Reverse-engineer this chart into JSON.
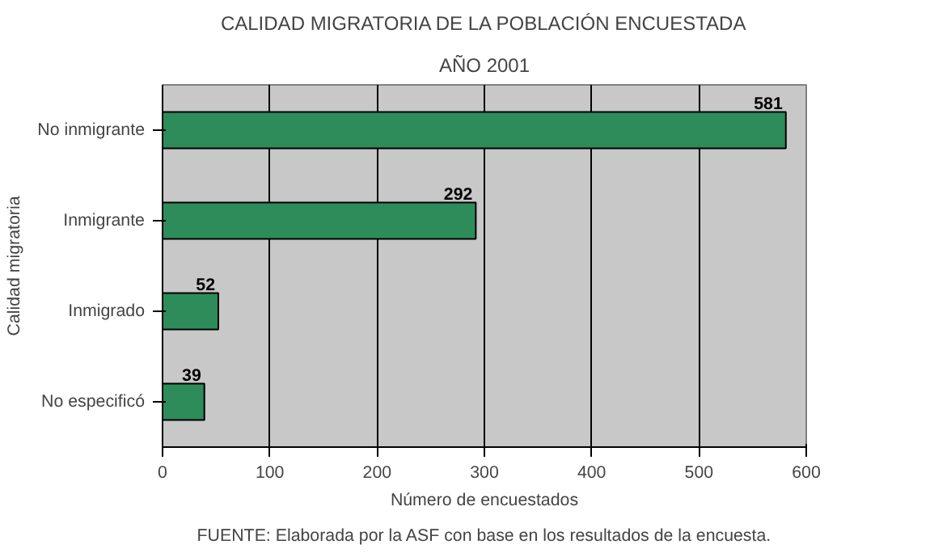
{
  "chart_data": {
    "type": "bar",
    "orientation": "horizontal",
    "title": "CALIDAD MIGRATORIA DE LA POBLACIÓN ENCUESTADA",
    "subtitle": "AÑO 2001",
    "xlabel": "Número de encuestados",
    "ylabel": "Calidad migratoria",
    "categories": [
      "No inmigrante",
      "Inmigrante",
      "Inmigrado",
      "No especificó"
    ],
    "values": [
      581,
      292,
      52,
      39
    ],
    "color": "#2e8b5a",
    "xlim": [
      0,
      600
    ],
    "xticks": [
      0,
      100,
      200,
      300,
      400,
      500,
      600
    ],
    "grid": "x",
    "data_labels": true,
    "annotations": [
      "FUENTE: Elaborada por la ASF con base en los resultados de la encuesta."
    ]
  }
}
